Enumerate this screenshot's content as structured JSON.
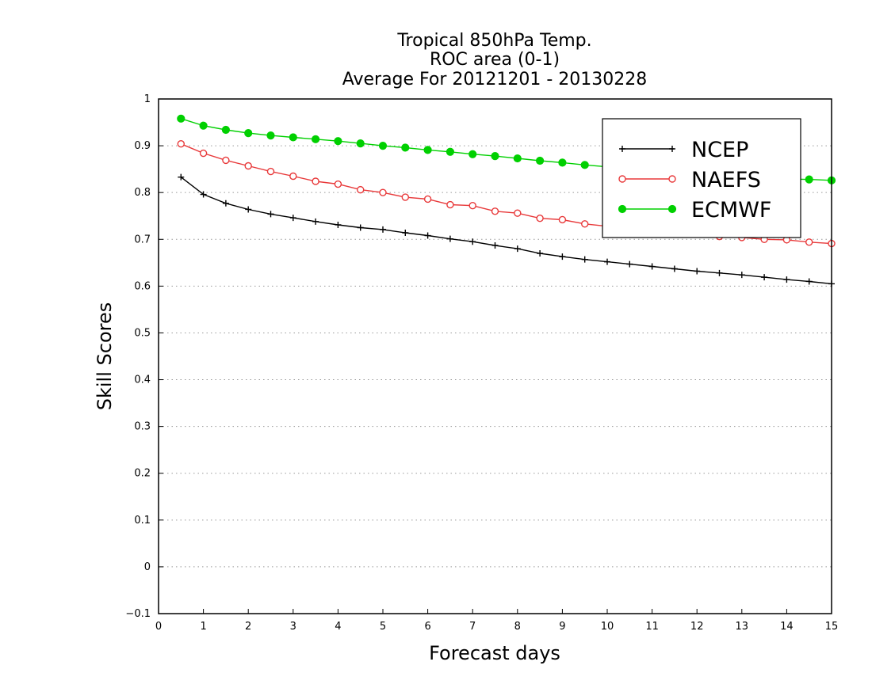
{
  "chart_data": {
    "type": "line",
    "title": [
      "Tropical 850hPa Temp.",
      "ROC area (0-1)",
      "Average For 20121201 - 20130228"
    ],
    "xlabel": "Forecast days",
    "ylabel": "Skill Scores",
    "xlim": [
      0,
      15
    ],
    "ylim": [
      -0.1,
      1
    ],
    "xticks": [
      "0",
      "1",
      "2",
      "3",
      "4",
      "5",
      "6",
      "7",
      "8",
      "9",
      "10",
      "11",
      "12",
      "13",
      "14",
      "15"
    ],
    "yticks": [
      "−0.1",
      "0",
      "0.1",
      "0.2",
      "0.3",
      "0.4",
      "0.5",
      "0.6",
      "0.7",
      "0.8",
      "0.9",
      "1"
    ],
    "grid": "horizontal dotted",
    "legend_position": "top-right",
    "x": [
      0.5,
      1,
      1.5,
      2,
      2.5,
      3,
      3.5,
      4,
      4.5,
      5,
      5.5,
      6,
      6.5,
      7,
      7.5,
      8,
      8.5,
      9,
      9.5,
      10,
      10.5,
      11,
      11.5,
      12,
      12.5,
      13,
      13.5,
      14,
      14.5,
      15
    ],
    "series": [
      {
        "name": "NCEP",
        "color": "#000000",
        "marker": "plus",
        "values": [
          0.833,
          0.796,
          0.777,
          0.764,
          0.754,
          0.746,
          0.738,
          0.731,
          0.725,
          0.721,
          0.714,
          0.708,
          0.701,
          0.695,
          0.687,
          0.68,
          0.67,
          0.663,
          0.657,
          0.652,
          0.647,
          0.642,
          0.637,
          0.632,
          0.628,
          0.624,
          0.619,
          0.614,
          0.61,
          0.605
        ]
      },
      {
        "name": "NAEFS",
        "color": "#e8393a",
        "marker": "open-circle",
        "values": [
          0.904,
          0.884,
          0.869,
          0.857,
          0.845,
          0.835,
          0.824,
          0.818,
          0.806,
          0.8,
          0.79,
          0.786,
          0.774,
          0.772,
          0.76,
          0.756,
          0.745,
          0.742,
          0.733,
          0.728,
          0.724,
          0.719,
          0.715,
          0.711,
          0.706,
          0.704,
          0.7,
          0.699,
          0.694,
          0.691
        ]
      },
      {
        "name": "ECMWF",
        "color": "#00d000",
        "marker": "filled-circle",
        "values": [
          0.958,
          0.943,
          0.934,
          0.927,
          0.922,
          0.918,
          0.914,
          0.91,
          0.905,
          0.9,
          0.896,
          0.891,
          0.887,
          0.882,
          0.878,
          0.873,
          0.868,
          0.864,
          0.859,
          0.855,
          0.851,
          0.847,
          0.843,
          0.839,
          0.835,
          0.832,
          0.83,
          0.829,
          0.828,
          0.826
        ]
      }
    ]
  }
}
